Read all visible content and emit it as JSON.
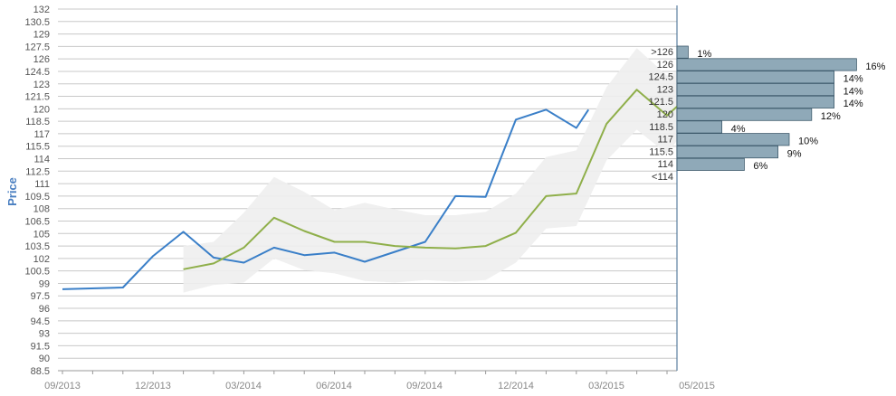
{
  "chart_data": {
    "type": "line",
    "ylabel": "Price",
    "ylim": [
      88.5,
      132
    ],
    "y_ticks": [
      "132",
      "130.5",
      "129",
      "127.5",
      "126",
      "124.5",
      "123",
      "121.5",
      "120",
      "118.5",
      "117",
      "115.5",
      "114",
      "112.5",
      "111",
      "109.5",
      "108",
      "106.5",
      "105",
      "103.5",
      "102",
      "100.5",
      "99",
      "97.5",
      "96",
      "94.5",
      "93",
      "91.5",
      "90",
      "88.5"
    ],
    "x_ticks": [
      "09/2013",
      "12/2013",
      "03/2014",
      "06/2014",
      "09/2014",
      "12/2014",
      "03/2015",
      "05/2015"
    ],
    "series": [
      {
        "color": "#3a7fc8",
        "points": [
          [
            0,
            98.3
          ],
          [
            2,
            98.5
          ],
          [
            3,
            102.3
          ],
          [
            4,
            105.2
          ],
          [
            5,
            102.1
          ],
          [
            6,
            101.5
          ],
          [
            7,
            103.3
          ],
          [
            8,
            102.4
          ],
          [
            9,
            102.7
          ],
          [
            10,
            101.6
          ],
          [
            11,
            102.8
          ],
          [
            12,
            104
          ],
          [
            13,
            109.5
          ],
          [
            14,
            109.4
          ],
          [
            15,
            118.7
          ],
          [
            16,
            119.9
          ],
          [
            17,
            117.7
          ],
          [
            17.4,
            119.9
          ]
        ]
      },
      {
        "color": "#8faf4a",
        "points": [
          [
            4,
            100.7
          ],
          [
            5,
            101.4
          ],
          [
            6,
            103.3
          ],
          [
            7,
            106.9
          ],
          [
            8,
            105.3
          ],
          [
            9,
            104
          ],
          [
            10,
            104
          ],
          [
            11,
            103.5
          ],
          [
            12,
            103.3
          ],
          [
            13,
            103.2
          ],
          [
            14,
            103.5
          ],
          [
            15,
            105.1
          ],
          [
            16,
            109.5
          ],
          [
            17,
            109.8
          ],
          [
            18,
            118.2
          ],
          [
            19,
            122.3
          ],
          [
            20,
            119.2
          ],
          [
            20.4,
            120.5
          ]
        ]
      }
    ],
    "band": {
      "color": "#eeeeee",
      "upper": [
        [
          4,
          103.5
        ],
        [
          5,
          104
        ],
        [
          6,
          107.5
        ],
        [
          7,
          111.8
        ],
        [
          8,
          110
        ],
        [
          9,
          107.8
        ],
        [
          10,
          108.7
        ],
        [
          11,
          107.9
        ],
        [
          12,
          107.2
        ],
        [
          13,
          107.2
        ],
        [
          14,
          107.6
        ],
        [
          15,
          109.8
        ],
        [
          16,
          114.2
        ],
        [
          17,
          115
        ],
        [
          18,
          122.6
        ],
        [
          19,
          127.3
        ],
        [
          20,
          124
        ],
        [
          20.4,
          124.5
        ]
      ],
      "lower": [
        [
          4,
          97.9
        ],
        [
          5,
          98.8
        ],
        [
          6,
          99.1
        ],
        [
          7,
          102
        ],
        [
          8,
          100.6
        ],
        [
          9,
          100.2
        ],
        [
          10,
          99.3
        ],
        [
          11,
          99.1
        ],
        [
          12,
          99.4
        ],
        [
          13,
          99.2
        ],
        [
          14,
          99.4
        ],
        [
          15,
          101.5
        ],
        [
          16,
          105.6
        ],
        [
          17,
          105.9
        ],
        [
          18,
          113.8
        ],
        [
          19,
          117.5
        ],
        [
          20,
          114.6
        ],
        [
          20.4,
          116.5
        ]
      ]
    },
    "distribution": {
      "color": "#8fa9b8",
      "bins": [
        {
          "label": ">126",
          "value": 1,
          "text": "1%"
        },
        {
          "label": "126",
          "value": 16,
          "text": "16%"
        },
        {
          "label": "124.5",
          "value": 14,
          "text": "14%"
        },
        {
          "label": "123",
          "value": 14,
          "text": "14%"
        },
        {
          "label": "121.5",
          "value": 14,
          "text": "14%"
        },
        {
          "label": "120",
          "value": 12,
          "text": "12%"
        },
        {
          "label": "118.5",
          "value": 4,
          "text": "4%"
        },
        {
          "label": "117",
          "value": 10,
          "text": "10%"
        },
        {
          "label": "115.5",
          "value": 9,
          "text": "9%"
        },
        {
          "label": "114",
          "value": 6,
          "text": "6%"
        },
        {
          "label": "<114",
          "value": 0,
          "text": ""
        }
      ]
    },
    "grid": true
  }
}
